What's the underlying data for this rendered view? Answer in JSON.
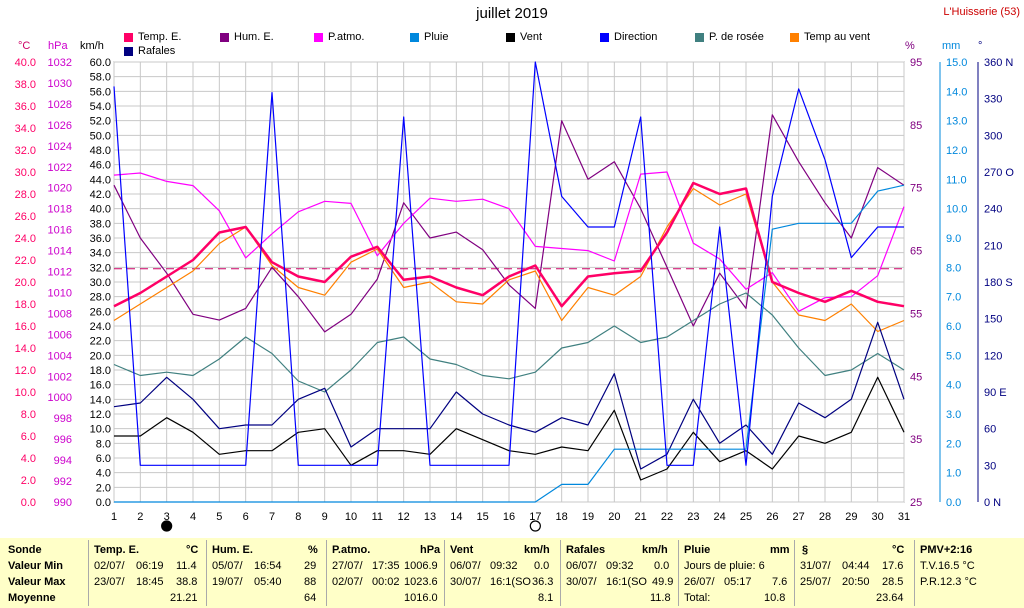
{
  "title": "juillet 2019",
  "location": "L'Huisserie (53)",
  "units": {
    "temp": "°C",
    "press": "hPa",
    "speed": "km/h",
    "hum": "%",
    "rain": "mm",
    "dir": "°"
  },
  "legend": [
    {
      "label": "Temp. E.",
      "color": "#ff0066"
    },
    {
      "label": "Hum. E.",
      "color": "#800080"
    },
    {
      "label": "P.atmo.",
      "color": "#ff00ff"
    },
    {
      "label": "Pluie",
      "color": "#0088dd"
    },
    {
      "label": "Vent",
      "color": "#000000"
    },
    {
      "label": "Direction",
      "color": "#0000ff"
    },
    {
      "label": "P. de rosée",
      "color": "#408080"
    },
    {
      "label": "Temp au vent",
      "color": "#ff8000"
    },
    {
      "label": "Rafales",
      "color": "#000080"
    }
  ],
  "colors": {
    "temp_axis": "#ff0066",
    "press_axis": "#cc00cc",
    "speed_axis": "#000000",
    "hum_axis": "#800080",
    "rain_axis": "#0088dd",
    "dir_axis": "#000080",
    "grid": "#c8c8c8",
    "stats_bg": "#ffffc8"
  },
  "moon_phases": [
    {
      "day": 3,
      "phase": "new-moon"
    },
    {
      "day": 17,
      "phase": "full-moon"
    }
  ],
  "chart_data": {
    "type": "line",
    "x": [
      1,
      2,
      3,
      4,
      5,
      6,
      7,
      8,
      9,
      10,
      11,
      12,
      13,
      14,
      15,
      16,
      17,
      18,
      19,
      20,
      21,
      22,
      23,
      24,
      25,
      26,
      27,
      28,
      29,
      30,
      31
    ],
    "xticks": [
      "1",
      "2",
      "3",
      "4",
      "5",
      "6",
      "7",
      "8",
      "9",
      "10",
      "11",
      "12",
      "13",
      "14",
      "15",
      "16",
      "17",
      "18",
      "19",
      "20",
      "21",
      "22",
      "23",
      "24",
      "25",
      "26",
      "27",
      "28",
      "29",
      "30",
      "31"
    ],
    "axes": {
      "temp": {
        "min": 0,
        "max": 40,
        "ticks": [
          "0.0",
          "2.0",
          "4.0",
          "6.0",
          "8.0",
          "10.0",
          "12.0",
          "14.0",
          "16.0",
          "18.0",
          "20.0",
          "22.0",
          "24.0",
          "26.0",
          "28.0",
          "30.0",
          "32.0",
          "34.0",
          "36.0",
          "38.0",
          "40.0"
        ]
      },
      "press": {
        "min": 990,
        "max": 1032,
        "ticks": [
          "990",
          "992",
          "994",
          "996",
          "998",
          "1000",
          "1002",
          "1004",
          "1006",
          "1008",
          "1010",
          "1012",
          "1014",
          "1016",
          "1018",
          "1020",
          "1022",
          "1024",
          "1026",
          "1028",
          "1030",
          "1032"
        ]
      },
      "speed": {
        "min": 0,
        "max": 60,
        "ticks": [
          "0.0",
          "2.0",
          "4.0",
          "6.0",
          "8.0",
          "10.0",
          "12.0",
          "14.0",
          "16.0",
          "18.0",
          "20.0",
          "22.0",
          "24.0",
          "26.0",
          "28.0",
          "30.0",
          "32.0",
          "34.0",
          "36.0",
          "38.0",
          "40.0",
          "42.0",
          "44.0",
          "46.0",
          "48.0",
          "50.0",
          "52.0",
          "54.0",
          "56.0",
          "58.0",
          "60.0"
        ]
      },
      "hum": {
        "min": 25,
        "max": 100,
        "ticks": [
          "25",
          "35",
          "45",
          "55",
          "65",
          "75",
          "85",
          "95"
        ]
      },
      "rain": {
        "min": 0,
        "max": 15,
        "ticks": [
          "0.0",
          "1.0",
          "2.0",
          "3.0",
          "4.0",
          "5.0",
          "6.0",
          "7.0",
          "8.0",
          "9.0",
          "10.0",
          "11.0",
          "12.0",
          "13.0",
          "14.0",
          "15.0"
        ]
      },
      "dir": {
        "min": 0,
        "max": 360,
        "ticks": [
          "0 N",
          "30",
          "60",
          "90 E",
          "120",
          "150",
          "180 S",
          "210",
          "240",
          "270 O",
          "300",
          "330",
          "360 N"
        ]
      }
    },
    "reference_line": {
      "axis": "temp",
      "value": 21.21
    },
    "series": [
      {
        "key": "hum",
        "axis": "hum",
        "values": [
          79,
          70,
          64,
          57,
          56,
          58,
          65,
          60,
          54,
          57,
          63,
          76,
          70,
          71,
          68,
          62,
          58,
          90,
          80,
          83,
          75,
          65,
          55,
          64,
          58,
          91,
          83,
          76,
          70,
          82,
          79
        ]
      },
      {
        "key": "press",
        "axis": "press",
        "values": [
          1021.2,
          1021.4,
          1020.6,
          1020.2,
          1017.8,
          1013.3,
          1015.6,
          1017.7,
          1018.7,
          1018.5,
          1013.5,
          1016.6,
          1019.0,
          1018.7,
          1018.9,
          1018.0,
          1014.4,
          1014.2,
          1014.0,
          1013.0,
          1021.3,
          1021.5,
          1014.7,
          1013.2,
          1010.3,
          1011.9,
          1008.2,
          1009.5,
          1009.6,
          1011.6,
          1018.2
        ]
      },
      {
        "key": "dew",
        "axis": "temp",
        "values": [
          12.5,
          11.5,
          11.8,
          11.5,
          13.0,
          15.0,
          13.5,
          11.0,
          10.0,
          12.0,
          14.5,
          15.0,
          13.0,
          12.5,
          11.5,
          11.2,
          11.8,
          14.0,
          14.5,
          16.0,
          14.5,
          15.0,
          16.5,
          18.0,
          19.0,
          17.0,
          14.0,
          11.5,
          12.0,
          13.5,
          12.0
        ]
      },
      {
        "key": "chill",
        "axis": "temp",
        "values": [
          16.5,
          18.0,
          19.5,
          21.0,
          23.5,
          25.0,
          21.5,
          19.5,
          18.8,
          21.8,
          23.0,
          19.5,
          20.0,
          18.2,
          18.0,
          20.2,
          21.0,
          16.5,
          19.5,
          18.8,
          20.5,
          25.0,
          28.5,
          27.0,
          28.0,
          20.0,
          17.0,
          16.5,
          18.0,
          15.5,
          16.5
        ]
      },
      {
        "key": "temp",
        "axis": "temp",
        "values": [
          17.8,
          19.0,
          20.5,
          22.0,
          24.5,
          25.0,
          21.8,
          20.5,
          20.0,
          22.3,
          23.2,
          20.2,
          20.5,
          19.5,
          18.8,
          20.5,
          21.5,
          17.8,
          20.5,
          20.8,
          21.0,
          24.5,
          29.0,
          28.0,
          28.5,
          20.0,
          19.0,
          18.2,
          19.2,
          18.2,
          17.8
        ]
      },
      {
        "key": "wind",
        "axis": "speed",
        "values": [
          9.0,
          9.0,
          11.5,
          9.5,
          6.5,
          7.0,
          7.0,
          9.5,
          10.0,
          5.0,
          7.0,
          7.0,
          6.5,
          10.0,
          8.5,
          7.0,
          6.5,
          7.5,
          7.0,
          12.5,
          3.0,
          4.5,
          9.5,
          5.5,
          7.0,
          4.5,
          9.0,
          8.0,
          9.5,
          17.0,
          9.5
        ]
      },
      {
        "key": "gust",
        "axis": "speed",
        "values": [
          13.0,
          13.5,
          17.0,
          14.0,
          10.0,
          10.5,
          10.5,
          14.0,
          15.5,
          7.5,
          10.0,
          10.0,
          10.0,
          15.0,
          12.0,
          10.5,
          9.5,
          11.5,
          10.5,
          17.5,
          4.5,
          6.5,
          14.0,
          8.0,
          10.5,
          6.5,
          13.5,
          11.5,
          14.0,
          24.5,
          14.0
        ]
      },
      {
        "key": "rain",
        "axis": "rain",
        "values": [
          0,
          0,
          0,
          0,
          0,
          0,
          0,
          0,
          0,
          0,
          0,
          0,
          0,
          0,
          0,
          0,
          0,
          0.6,
          0.6,
          1.8,
          1.8,
          1.8,
          1.8,
          1.8,
          1.8,
          9.3,
          9.5,
          9.5,
          9.5,
          10.6,
          10.8
        ]
      },
      {
        "key": "dir",
        "axis": "dir",
        "values": [
          340,
          30,
          30,
          30,
          30,
          30,
          335,
          30,
          30,
          30,
          30,
          315,
          30,
          30,
          30,
          30,
          360,
          250,
          225,
          225,
          315,
          30,
          30,
          225,
          30,
          250,
          338,
          280,
          200,
          225,
          225
        ]
      }
    ]
  },
  "stats": {
    "temp": {
      "title": "Temp. E.",
      "unit": "°C",
      "min_date": "02/07/",
      "min_time": "06:19",
      "min_val": "11.4",
      "max_date": "23/07/",
      "max_time": "18:45",
      "max_val": "38.8",
      "mean": "21.21"
    },
    "hum": {
      "title": "Hum. E.",
      "unit": "%",
      "min_date": "05/07/",
      "min_time": "16:54",
      "min_val": "29",
      "max_date": "19/07/",
      "max_time": "05:40",
      "max_val": "88",
      "mean": "64"
    },
    "press": {
      "title": "P.atmo.",
      "unit": "hPa",
      "min_date": "27/07/",
      "min_time": "17:35",
      "min_val": "1006.9",
      "max_date": "02/07/",
      "max_time": "00:02",
      "max_val": "1023.6",
      "mean": "1016.0"
    },
    "wind": {
      "title": "Vent",
      "unit": "km/h",
      "min_date": "06/07/",
      "min_time": "09:32",
      "min_val": "0.0",
      "max_date": "30/07/",
      "max_time": "16:1(SO",
      "max_val": "36.3",
      "mean": "8.1"
    },
    "gust": {
      "title": "Rafales",
      "unit": "km/h",
      "min_date": "06/07/",
      "min_time": "09:32",
      "min_val": "0.0",
      "max_date": "30/07/",
      "max_time": "16:1(SO",
      "max_val": "49.9",
      "mean": "11.8"
    },
    "rain": {
      "title": "Pluie",
      "unit": "mm",
      "days_label": "Jours de pluie: 6",
      "max_date": "26/07/",
      "max_time": "05:17",
      "max_val": "7.6",
      "total_label": "Total:",
      "total": "10.8"
    },
    "extra": {
      "title": "§",
      "unit": "°C",
      "min_date": "31/07/",
      "min_time": "04:44",
      "min_val": "17.6",
      "max_date": "25/07/",
      "max_time": "20:50",
      "max_val": "28.5",
      "mean": "23.64"
    },
    "pmv": {
      "title": "PMV+2:16",
      "tv": "T.V.16.5 °C",
      "pr": "P.R.12.3 °C"
    },
    "row_labels": {
      "sonde": "Sonde",
      "min": "Valeur Min",
      "max": "Valeur Max",
      "mean": "Moyenne"
    }
  }
}
